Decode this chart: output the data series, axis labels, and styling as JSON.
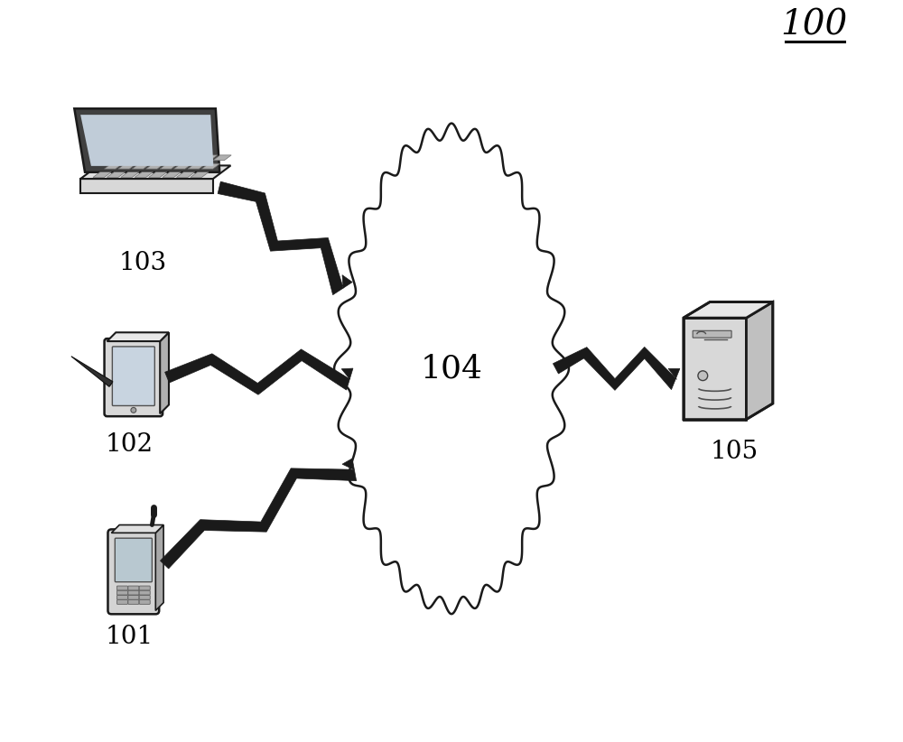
{
  "title_label": "100",
  "cloud_label": "104",
  "laptop_label": "103",
  "tablet_label": "102",
  "phone_label": "101",
  "server_label": "105",
  "bg_color": "#ffffff",
  "line_color": "#1a1a1a",
  "label_fontsize": 20,
  "cloud_label_fontsize": 26,
  "cloud_fill": "#ffffff",
  "cloud_stroke": "#1a1a1a",
  "lw_cloud": 1.8,
  "lw_device": 2.0,
  "lw_bolt": 3.5
}
